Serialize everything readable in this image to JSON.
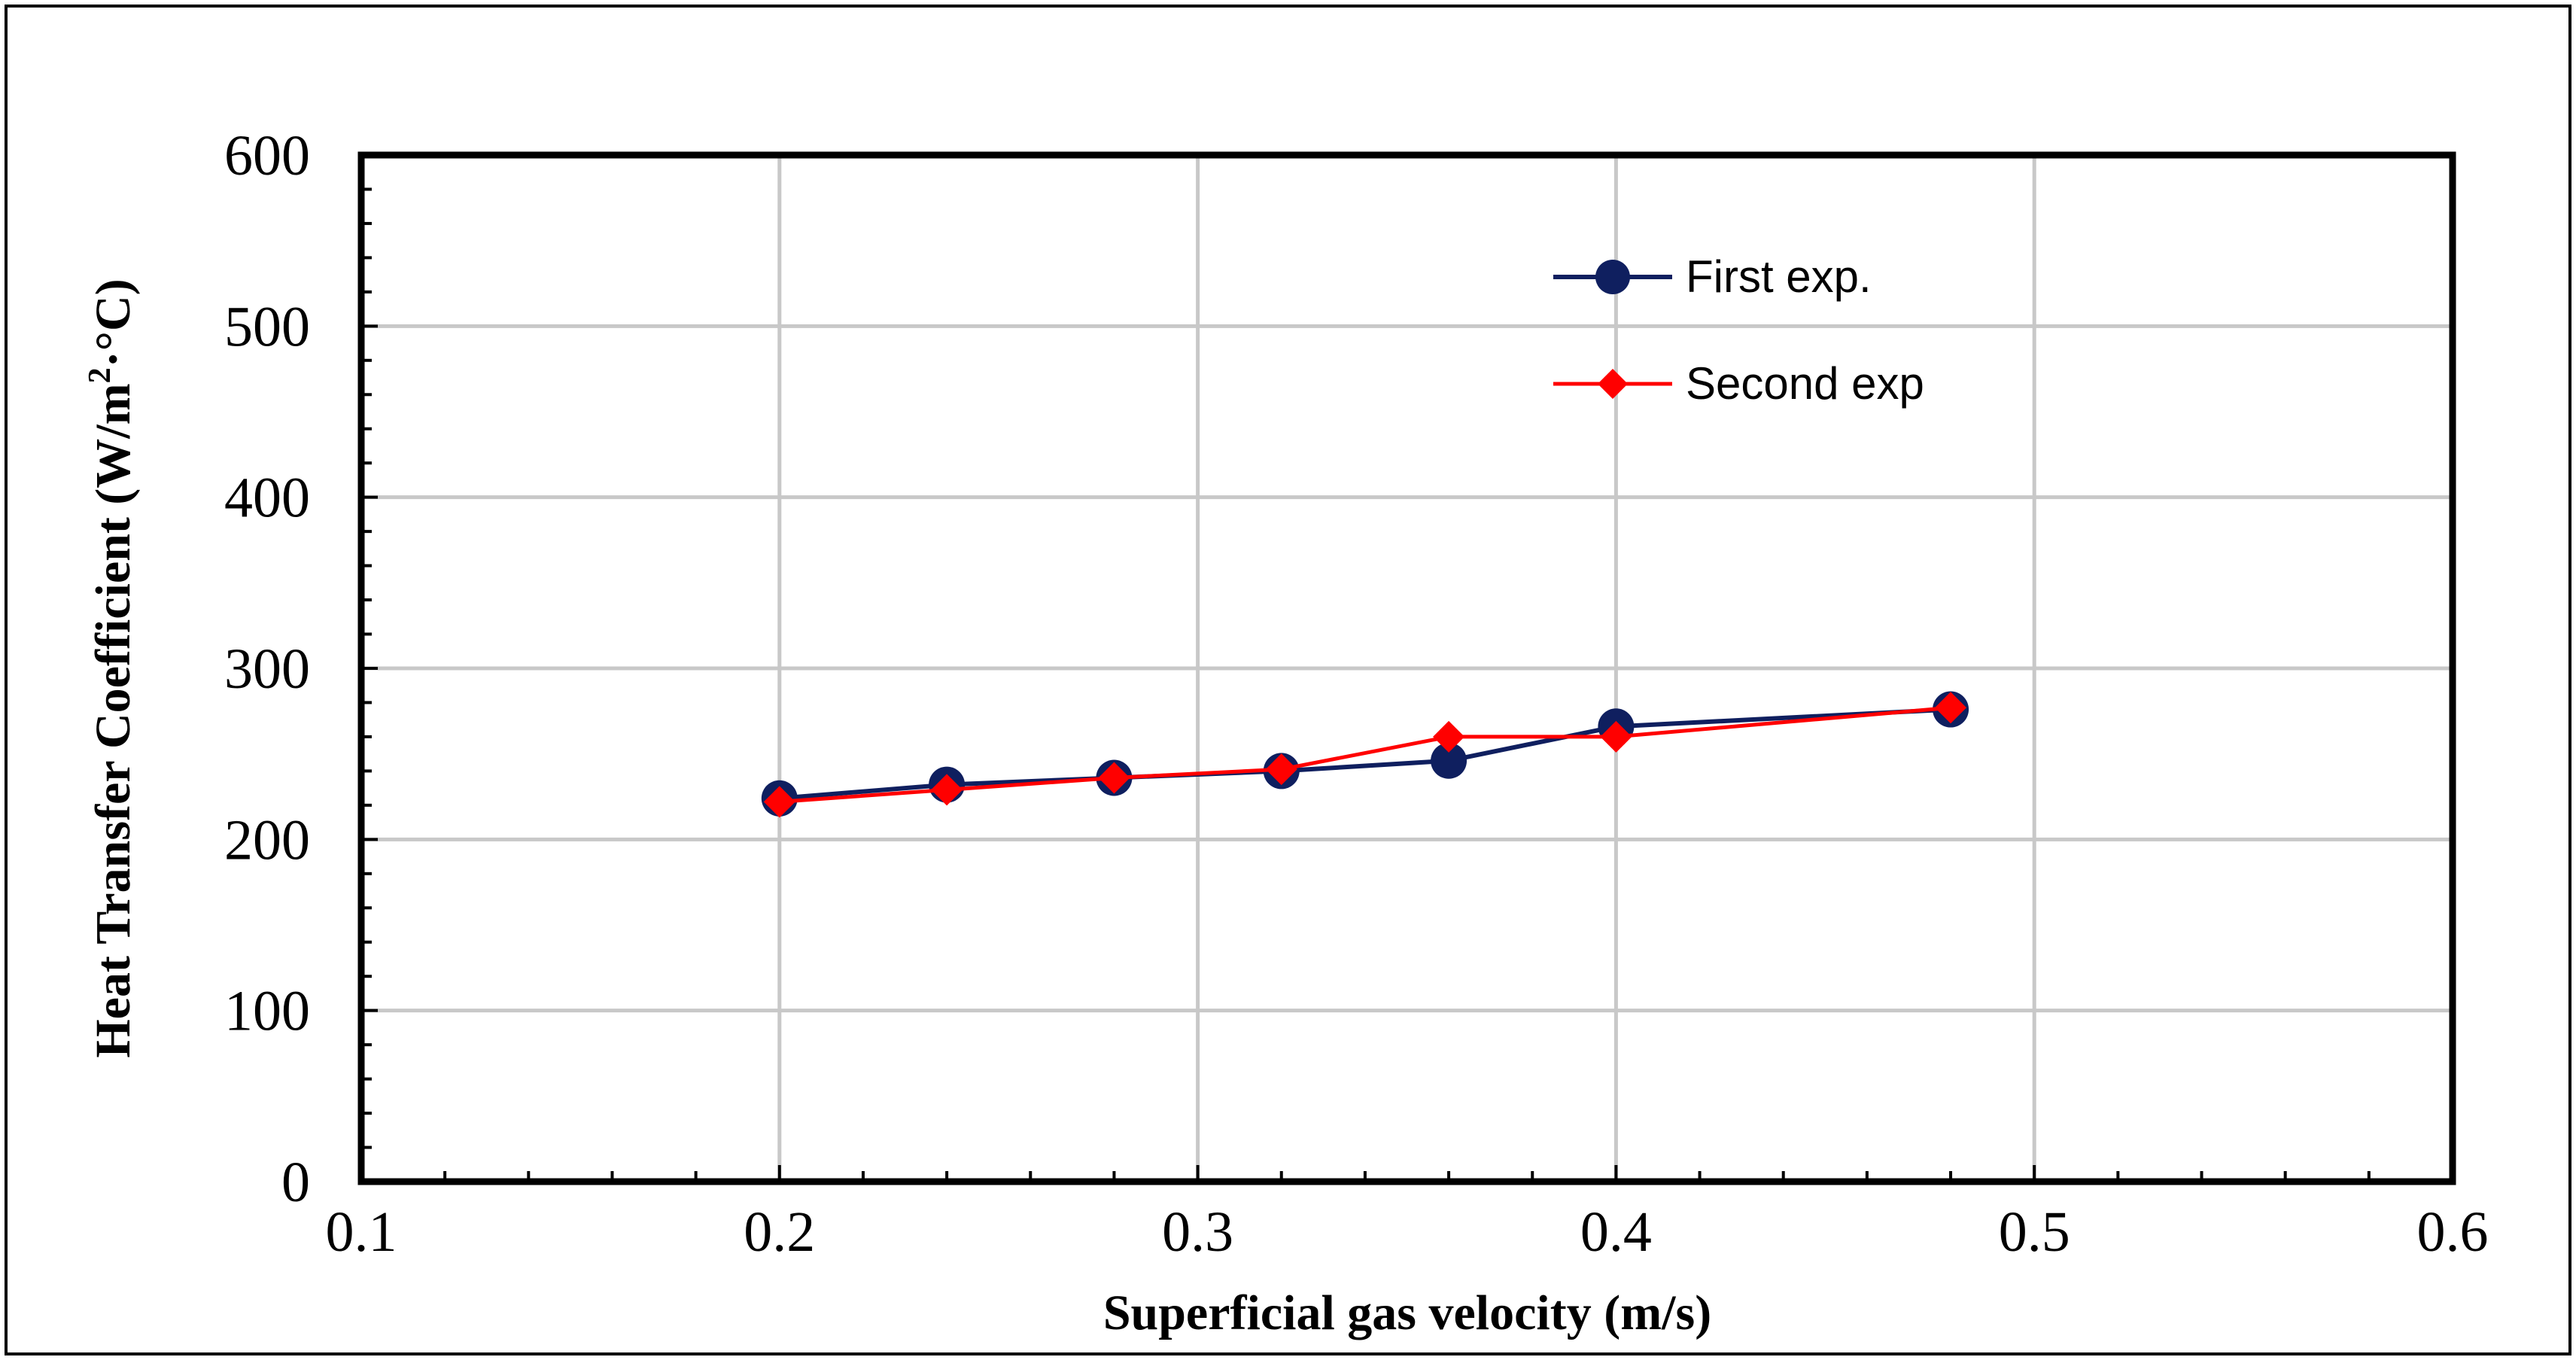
{
  "chart_data": {
    "type": "line",
    "title": "",
    "xlabel": "Superficial gas velocity (m/s)",
    "ylabel_main": "Heat Transfer Coefficient (W/m",
    "ylabel_sup": "2",
    "ylabel_tail": "·°C)",
    "xlim": [
      0.1,
      0.6
    ],
    "ylim": [
      0,
      600
    ],
    "xticks": [
      0.1,
      0.2,
      0.3,
      0.4,
      0.5,
      0.6
    ],
    "xtick_labels": [
      "0.1",
      "0.2",
      "0.3",
      "0.4",
      "0.5",
      "0.6"
    ],
    "yticks": [
      0,
      100,
      200,
      300,
      400,
      500,
      600
    ],
    "ytick_labels": [
      "0",
      "100",
      "200",
      "300",
      "400",
      "500",
      "600"
    ],
    "x_minor_step": 0.02,
    "y_minor_step": 20,
    "grid": true,
    "legend_position": "upper-right-inside",
    "series": [
      {
        "name": "First exp.",
        "color": "#0f1f5f",
        "marker": "circle",
        "x": [
          0.2,
          0.24,
          0.28,
          0.32,
          0.36,
          0.4,
          0.48
        ],
        "y": [
          224,
          232,
          236,
          240,
          246,
          266,
          276
        ]
      },
      {
        "name": "Second exp",
        "color": "#ff0000",
        "marker": "diamond",
        "x": [
          0.2,
          0.24,
          0.28,
          0.32,
          0.36,
          0.4,
          0.48
        ],
        "y": [
          222,
          229,
          236,
          241,
          260,
          260,
          277
        ]
      }
    ]
  }
}
